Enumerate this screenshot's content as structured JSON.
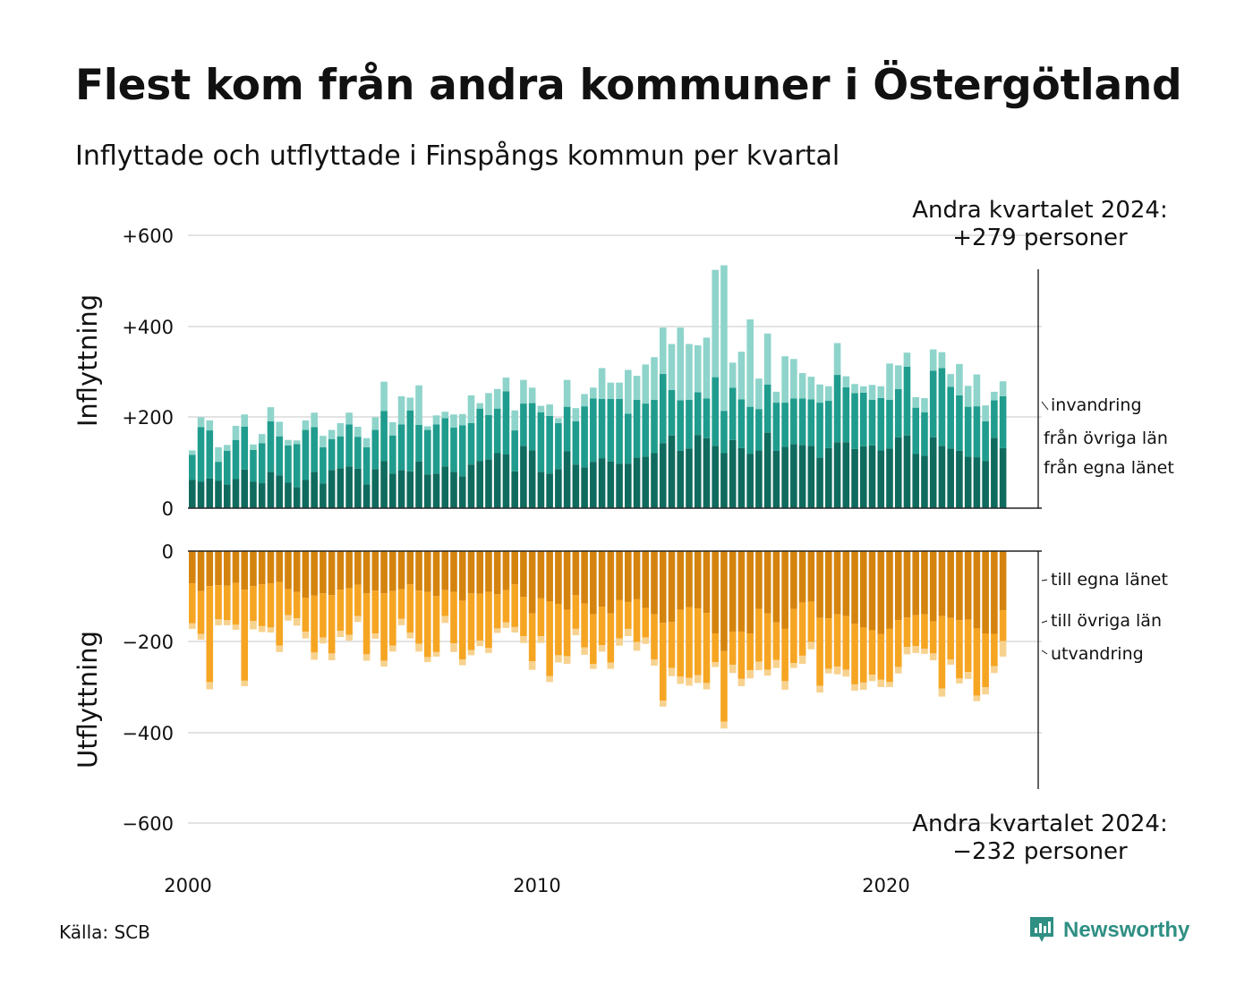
{
  "title": "Flest kom från andra kommuner i Östergötland",
  "subtitle": "Inflyttade och utflyttade i Finspångs kommun per kvartal",
  "source": "Källa: SCB",
  "brand": "Newsworthy",
  "colors": {
    "in_own": "#0f6b5e",
    "in_other": "#1f9c8d",
    "in_immig": "#8ed4cb",
    "out_own": "#d4840e",
    "out_other": "#f6a522",
    "out_emig": "#f7d28f",
    "grid": "#e3e3e3",
    "brand": "#2f8f83"
  },
  "chart_data": {
    "type": "bar",
    "stacked": true,
    "x_unit": "quarter",
    "x_range": [
      "2000 Q1",
      "2024 Q2"
    ],
    "x_ticks": [
      "2000",
      "2010",
      "2020"
    ],
    "panels": [
      {
        "ylabel": "Inflyttning",
        "ylim": [
          0,
          600
        ],
        "y_ticks": [
          "0",
          "+200",
          "+400",
          "+600"
        ],
        "series": [
          {
            "name": "från egna länet",
            "values": [
              62,
              58,
              65,
              60,
              52,
              64,
              85,
              58,
              55,
              80,
              72,
              56,
              46,
              62,
              80,
              54,
              84,
              88,
              92,
              87,
              52,
              86,
              104,
              76,
              84,
              81,
              103,
              74,
              76,
              92,
              80,
              70,
              96,
              104,
              107,
              121,
              118,
              81,
              137,
              127,
              80,
              76,
              86,
              125,
              96,
              90,
              102,
              110,
              103,
              98,
              98,
              111,
              113,
              121,
              143,
              160,
              126,
              131,
              161,
              154,
              137,
              121,
              150,
              132,
              119,
              127,
              166,
              126,
              135,
              141,
              139,
              137,
              111,
              132,
              145,
              145,
              130,
              136,
              138,
              127,
              131,
              156,
              160,
              119,
              115,
              156,
              137,
              131,
              126,
              113,
              112,
              104,
              155,
              132
            ]
          },
          {
            "name": "från övriga län",
            "values": [
              55,
              120,
              106,
              42,
              74,
              86,
              94,
              70,
              88,
              111,
              86,
              82,
              95,
              110,
              98,
              80,
              68,
              70,
              92,
              70,
              82,
              86,
              110,
              84,
              100,
              134,
              80,
              98,
              108,
              106,
              97,
              112,
              91,
              115,
              98,
              98,
              139,
              90,
              93,
              104,
              131,
              127,
              101,
              98,
              95,
              134,
              139,
              130,
              137,
              142,
              110,
              127,
              117,
              117,
              152,
              100,
              111,
              107,
              94,
              87,
              151,
              93,
              115,
              107,
              104,
              91,
              106,
              106,
              97,
              100,
              102,
              102,
              121,
              104,
              148,
              121,
              123,
              118,
              100,
              115,
              107,
              106,
              151,
              102,
              96,
              146,
              171,
              136,
              122,
              110,
              112,
              87,
              82,
              114
            ]
          },
          {
            "name": "invandring",
            "values": [
              10,
              22,
              22,
              32,
              13,
              31,
              27,
              12,
              20,
              31,
              32,
              12,
              8,
              21,
              32,
              25,
              20,
              29,
              26,
              22,
              20,
              28,
              64,
              29,
              62,
              28,
              87,
              8,
              20,
              14,
              29,
              25,
              61,
              12,
              48,
              43,
              30,
              44,
              52,
              34,
              14,
              25,
              11,
              59,
              29,
              27,
              24,
              68,
              36,
              36,
              96,
              53,
              86,
              94,
              102,
              101,
              160,
              123,
              103,
              134,
              236,
              320,
              55,
              105,
              192,
              67,
              112,
              24,
              102,
              87,
              56,
              50,
              40,
              32,
              70,
              24,
              20,
              14,
              33,
              26,
              80,
              52,
              31,
              23,
              31,
              47,
              35,
              28,
              69,
              46,
              70,
              35,
              19,
              33
            ]
          }
        ]
      },
      {
        "ylabel": "Utflyttning",
        "ylim": [
          -600,
          0
        ],
        "y_ticks": [
          "0",
          "−200",
          "−400",
          "−600"
        ],
        "series": [
          {
            "name": "till egna länet",
            "values": [
              -71,
              -88,
              -77,
              -75,
              -76,
              -70,
              -85,
              -77,
              -73,
              -71,
              -68,
              -84,
              -90,
              -103,
              -98,
              -93,
              -97,
              -85,
              -82,
              -74,
              -93,
              -87,
              -93,
              -88,
              -84,
              -73,
              -87,
              -90,
              -99,
              -86,
              -90,
              -109,
              -93,
              -94,
              -90,
              -95,
              -86,
              -73,
              -101,
              -137,
              -104,
              -111,
              -116,
              -129,
              -97,
              -115,
              -139,
              -122,
              -137,
              -108,
              -112,
              -106,
              -125,
              -139,
              -158,
              -156,
              -129,
              -123,
              -126,
              -136,
              -181,
              -220,
              -177,
              -177,
              -181,
              -127,
              -137,
              -157,
              -171,
              -127,
              -113,
              -111,
              -147,
              -148,
              -139,
              -143,
              -160,
              -168,
              -174,
              -182,
              -171,
              -152,
              -146,
              -141,
              -139,
              -155,
              -143,
              -147,
              -152,
              -151,
              -170,
              -181,
              -182,
              -130
            ]
          },
          {
            "name": "till övriga län",
            "values": [
              -88,
              -94,
              -211,
              -75,
              -76,
              -92,
              -200,
              -77,
              -92,
              -97,
              -140,
              -57,
              -58,
              -74,
              -125,
              -97,
              -128,
              -90,
              -102,
              -69,
              -134,
              -94,
              -148,
              -120,
              -65,
              -106,
              -117,
              -143,
              -123,
              -57,
              -113,
              -129,
              -125,
              -103,
              -123,
              -75,
              -71,
              -94,
              -86,
              -105,
              -83,
              -164,
              -113,
              -102,
              -74,
              -97,
              -109,
              -85,
              -108,
              -84,
              -59,
              -94,
              -65,
              -99,
              -171,
              -101,
              -147,
              -156,
              -147,
              -154,
              -63,
              -155,
              -73,
              -104,
              -81,
              -116,
              -124,
              -82,
              -115,
              -119,
              -117,
              -89,
              -149,
              -111,
              -115,
              -118,
              -133,
              -121,
              -98,
              -101,
              -117,
              -103,
              -65,
              -68,
              -76,
              -70,
              -159,
              -91,
              -128,
              -115,
              -148,
              -118,
              -71,
              -68
            ]
          },
          {
            "name": "utvandring",
            "values": [
              -12,
              -13,
              -16,
              -13,
              -11,
              -11,
              -12,
              -18,
              -13,
              -11,
              -14,
              -12,
              -16,
              -15,
              -16,
              -13,
              -15,
              -14,
              -13,
              -13,
              -14,
              -12,
              -13,
              -13,
              -14,
              -13,
              -17,
              -11,
              -10,
              -15,
              -19,
              -13,
              -11,
              -12,
              -11,
              -10,
              -12,
              -12,
              -15,
              -19,
              -15,
              -13,
              -16,
              -17,
              -14,
              -16,
              -11,
              -14,
              -14,
              -16,
              -16,
              -19,
              -14,
              -14,
              -13,
              -18,
              -16,
              -17,
              -17,
              -14,
              -11,
              -15,
              -18,
              -16,
              -18,
              -19,
              -13,
              -18,
              -19,
              -11,
              -18,
              -16,
              -15,
              -10,
              -17,
              -15,
              -14,
              -16,
              -14,
              -16,
              -11,
              -14,
              -16,
              -15,
              -11,
              -15,
              -18,
              -12,
              -11,
              -15,
              -12,
              -16,
              -15,
              -34
            ]
          }
        ]
      }
    ],
    "labels_in": [
      "invandring",
      "från övriga län",
      "från egna länet"
    ],
    "labels_out": [
      "till egna länet",
      "till övriga län",
      "utvandring"
    ],
    "annotation_top": {
      "line1": "Andra kvartalet 2024:",
      "line2": "+279 personer"
    },
    "annotation_bottom": {
      "line1": "Andra kvartalet 2024:",
      "line2": "−232 personer"
    }
  }
}
